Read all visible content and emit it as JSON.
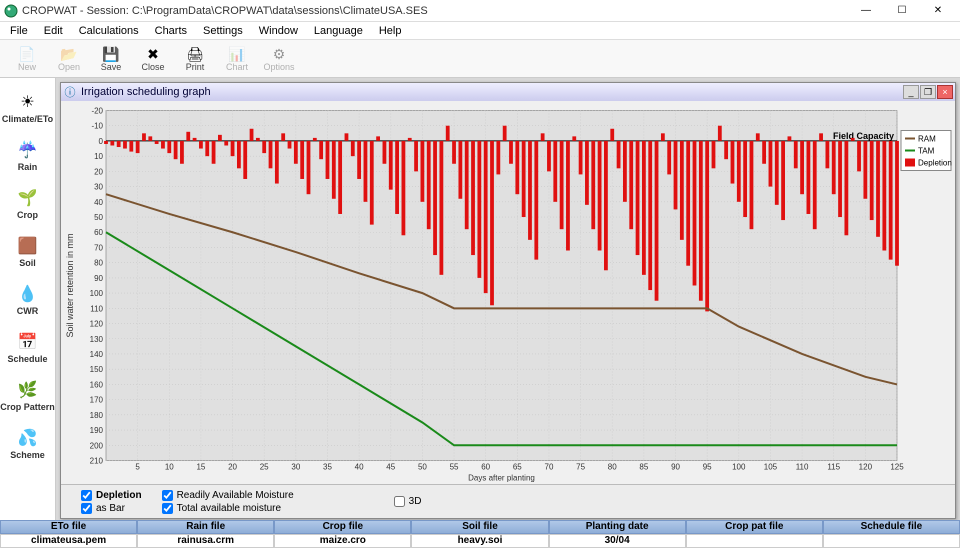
{
  "window": {
    "title": "CROPWAT - Session: C:\\ProgramData\\CROPWAT\\data\\sessions\\ClimateUSA.SES"
  },
  "menu": {
    "items": [
      "File",
      "Edit",
      "Calculations",
      "Charts",
      "Settings",
      "Window",
      "Language",
      "Help"
    ]
  },
  "toolbar": {
    "buttons": [
      {
        "label": "New",
        "enabled": false
      },
      {
        "label": "Open",
        "enabled": false
      },
      {
        "label": "Save",
        "enabled": true
      },
      {
        "label": "Close",
        "enabled": true
      },
      {
        "label": "Print",
        "enabled": true
      },
      {
        "label": "Chart",
        "enabled": false
      },
      {
        "label": "Options",
        "enabled": false
      }
    ]
  },
  "sidebar": {
    "items": [
      {
        "label": "Climate/ETo",
        "icon": "☀"
      },
      {
        "label": "Rain",
        "icon": "☔"
      },
      {
        "label": "Crop",
        "icon": "🌱"
      },
      {
        "label": "Soil",
        "icon": "🟫"
      },
      {
        "label": "CWR",
        "icon": "💧"
      },
      {
        "label": "Schedule",
        "icon": "📅"
      },
      {
        "label": "Crop Pattern",
        "icon": "🌿"
      },
      {
        "label": "Scheme",
        "icon": "💦"
      }
    ]
  },
  "mdi": {
    "title": "Irrigation scheduling graph"
  },
  "chart": {
    "type": "bar+line",
    "x_label": "Days after planting",
    "y_label": "Soil water retention in mm",
    "x_min": 0,
    "x_max": 125,
    "y_min": -20,
    "y_max": 210,
    "x_tick_step": 5,
    "y_tick_step": 10,
    "field_capacity_label": "Field Capacity",
    "background": "#e0e0e0",
    "grid_color": "#c8c8c8",
    "series": {
      "ram": {
        "label": "RAM",
        "color": "#7a5430",
        "width": 2,
        "points": [
          [
            0,
            35
          ],
          [
            10,
            48
          ],
          [
            20,
            60
          ],
          [
            30,
            73
          ],
          [
            40,
            87
          ],
          [
            50,
            100
          ],
          [
            55,
            110
          ],
          [
            60,
            110
          ],
          [
            70,
            110
          ],
          [
            80,
            110
          ],
          [
            90,
            110
          ],
          [
            95,
            110
          ],
          [
            100,
            122
          ],
          [
            110,
            140
          ],
          [
            120,
            155
          ],
          [
            125,
            160
          ]
        ]
      },
      "tam": {
        "label": "TAM",
        "color": "#1a8a1a",
        "width": 2,
        "points": [
          [
            0,
            60
          ],
          [
            10,
            85
          ],
          [
            20,
            110
          ],
          [
            30,
            135
          ],
          [
            40,
            160
          ],
          [
            50,
            185
          ],
          [
            55,
            200
          ],
          [
            60,
            200
          ],
          [
            70,
            200
          ],
          [
            80,
            200
          ],
          [
            90,
            200
          ],
          [
            100,
            200
          ],
          [
            110,
            200
          ],
          [
            120,
            200
          ],
          [
            125,
            200
          ]
        ]
      },
      "depletion": {
        "label": "Depletion",
        "color": "#e01010",
        "bar_width": 0.6,
        "values": [
          [
            0,
            2
          ],
          [
            1,
            3
          ],
          [
            2,
            4
          ],
          [
            3,
            5
          ],
          [
            4,
            7
          ],
          [
            5,
            8
          ],
          [
            6,
            -5
          ],
          [
            7,
            -3
          ],
          [
            8,
            2
          ],
          [
            9,
            5
          ],
          [
            10,
            8
          ],
          [
            11,
            12
          ],
          [
            12,
            15
          ],
          [
            13,
            -6
          ],
          [
            14,
            -2
          ],
          [
            15,
            5
          ],
          [
            16,
            10
          ],
          [
            17,
            15
          ],
          [
            18,
            -4
          ],
          [
            19,
            3
          ],
          [
            20,
            10
          ],
          [
            21,
            18
          ],
          [
            22,
            25
          ],
          [
            23,
            -8
          ],
          [
            24,
            -2
          ],
          [
            25,
            8
          ],
          [
            26,
            18
          ],
          [
            27,
            28
          ],
          [
            28,
            -5
          ],
          [
            29,
            5
          ],
          [
            30,
            15
          ],
          [
            31,
            25
          ],
          [
            32,
            35
          ],
          [
            33,
            -2
          ],
          [
            34,
            12
          ],
          [
            35,
            25
          ],
          [
            36,
            38
          ],
          [
            37,
            48
          ],
          [
            38,
            -5
          ],
          [
            39,
            10
          ],
          [
            40,
            25
          ],
          [
            41,
            40
          ],
          [
            42,
            55
          ],
          [
            43,
            -3
          ],
          [
            44,
            15
          ],
          [
            45,
            32
          ],
          [
            46,
            48
          ],
          [
            47,
            62
          ],
          [
            48,
            -2
          ],
          [
            49,
            20
          ],
          [
            50,
            40
          ],
          [
            51,
            58
          ],
          [
            52,
            75
          ],
          [
            53,
            88
          ],
          [
            54,
            -10
          ],
          [
            55,
            15
          ],
          [
            56,
            38
          ],
          [
            57,
            58
          ],
          [
            58,
            75
          ],
          [
            59,
            90
          ],
          [
            60,
            100
          ],
          [
            61,
            108
          ],
          [
            62,
            22
          ],
          [
            63,
            -10
          ],
          [
            64,
            15
          ],
          [
            65,
            35
          ],
          [
            66,
            50
          ],
          [
            67,
            65
          ],
          [
            68,
            78
          ],
          [
            69,
            -5
          ],
          [
            70,
            20
          ],
          [
            71,
            40
          ],
          [
            72,
            58
          ],
          [
            73,
            72
          ],
          [
            74,
            -3
          ],
          [
            75,
            22
          ],
          [
            76,
            42
          ],
          [
            77,
            58
          ],
          [
            78,
            72
          ],
          [
            79,
            85
          ],
          [
            80,
            -8
          ],
          [
            81,
            18
          ],
          [
            82,
            40
          ],
          [
            83,
            58
          ],
          [
            84,
            75
          ],
          [
            85,
            88
          ],
          [
            86,
            98
          ],
          [
            87,
            105
          ],
          [
            88,
            -5
          ],
          [
            89,
            22
          ],
          [
            90,
            45
          ],
          [
            91,
            65
          ],
          [
            92,
            82
          ],
          [
            93,
            95
          ],
          [
            94,
            105
          ],
          [
            95,
            112
          ],
          [
            96,
            18
          ],
          [
            97,
            -10
          ],
          [
            98,
            12
          ],
          [
            99,
            28
          ],
          [
            100,
            40
          ],
          [
            101,
            50
          ],
          [
            102,
            58
          ],
          [
            103,
            -5
          ],
          [
            104,
            15
          ],
          [
            105,
            30
          ],
          [
            106,
            42
          ],
          [
            107,
            52
          ],
          [
            108,
            -3
          ],
          [
            109,
            18
          ],
          [
            110,
            35
          ],
          [
            111,
            48
          ],
          [
            112,
            58
          ],
          [
            113,
            -5
          ],
          [
            114,
            18
          ],
          [
            115,
            35
          ],
          [
            116,
            50
          ],
          [
            117,
            62
          ],
          [
            118,
            -2
          ],
          [
            119,
            20
          ],
          [
            120,
            38
          ],
          [
            121,
            52
          ],
          [
            122,
            63
          ],
          [
            123,
            72
          ],
          [
            124,
            78
          ],
          [
            125,
            82
          ]
        ]
      }
    },
    "legend_position": "top-right"
  },
  "options": {
    "depletion": {
      "label": "Depletion",
      "checked": true
    },
    "asbar": {
      "label": "as Bar",
      "checked": true
    },
    "ram": {
      "label": "Readily Available Moisture",
      "checked": true
    },
    "tam": {
      "label": "Total available moisture",
      "checked": true
    },
    "threeD": {
      "label": "3D",
      "checked": false
    }
  },
  "status": {
    "headers": [
      "ETo file",
      "Rain file",
      "Crop file",
      "Soil file",
      "Planting date",
      "Crop pat file",
      "Schedule file"
    ],
    "values": [
      "climateusa.pem",
      "rainusa.crm",
      "maize.cro",
      "heavy.soi",
      "30/04",
      "",
      ""
    ]
  }
}
